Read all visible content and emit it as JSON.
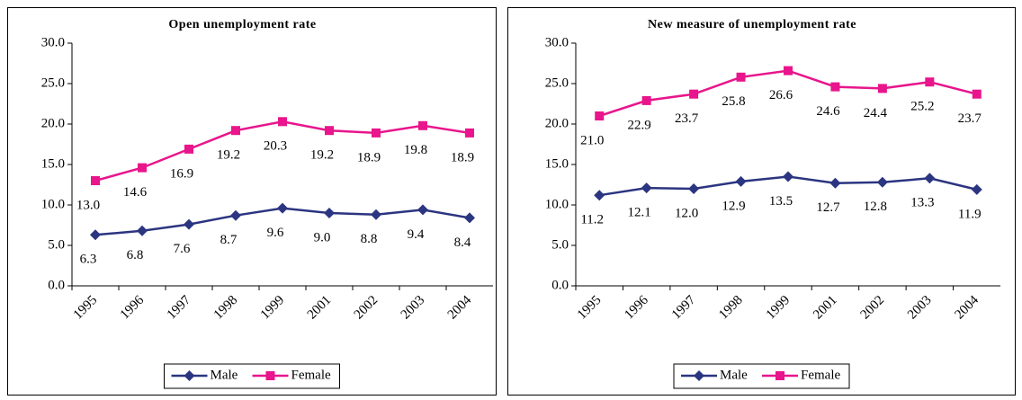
{
  "chart_data": [
    {
      "type": "line",
      "title": "Open unemployment rate",
      "categories": [
        "1995",
        "1996",
        "1997",
        "1998",
        "1999",
        "2001",
        "2002",
        "2003",
        "2004"
      ],
      "series": [
        {
          "name": "Male",
          "color": "#2b3580",
          "marker": "diamond",
          "values": [
            6.3,
            6.8,
            7.6,
            8.7,
            9.6,
            9.0,
            8.8,
            9.4,
            8.4
          ],
          "value_labels": [
            "6.3",
            "6.8",
            "7.6",
            "8.7",
            "9.6",
            "9.0",
            "8.8",
            "9.4",
            "8.4"
          ]
        },
        {
          "name": "Female",
          "color": "#e8158c",
          "marker": "square",
          "values": [
            13.0,
            14.6,
            16.9,
            19.2,
            20.3,
            19.2,
            18.9,
            19.8,
            18.9
          ],
          "value_labels": [
            "13.0",
            "14.6",
            "16.9",
            "19.2",
            "20.3",
            "19.2",
            "18.9",
            "19.8",
            "18.9"
          ]
        }
      ],
      "ylim": [
        0,
        30
      ],
      "yticks": [
        {
          "value": 0,
          "label": "0.0"
        },
        {
          "value": 5,
          "label": "5.0"
        },
        {
          "value": 10,
          "label": "10.0"
        },
        {
          "value": 15,
          "label": "15.0"
        },
        {
          "value": 20,
          "label": "20.0"
        },
        {
          "value": 25,
          "label": "25.0"
        },
        {
          "value": 30,
          "label": "30.0"
        }
      ],
      "legend": "bottom"
    },
    {
      "type": "line",
      "title": "New measure of unemployment rate",
      "categories": [
        "1995",
        "1996",
        "1997",
        "1998",
        "1999",
        "2001",
        "2002",
        "2003",
        "2004"
      ],
      "series": [
        {
          "name": "Male",
          "color": "#2b3580",
          "marker": "diamond",
          "values": [
            11.2,
            12.1,
            12.0,
            12.9,
            13.5,
            12.7,
            12.8,
            13.3,
            11.9
          ],
          "value_labels": [
            "11.2",
            "12.1",
            "12.0",
            "12.9",
            "13.5",
            "12.7",
            "12.8",
            "13.3",
            "11.9"
          ]
        },
        {
          "name": "Female",
          "color": "#e8158c",
          "marker": "square",
          "values": [
            21.0,
            22.9,
            23.7,
            25.8,
            26.6,
            24.6,
            24.4,
            25.2,
            23.7
          ],
          "value_labels": [
            "21.0",
            "22.9",
            "23.7",
            "25.8",
            "26.6",
            "24.6",
            "24.4",
            "25.2",
            "23.7"
          ]
        }
      ],
      "ylim": [
        0,
        30
      ],
      "yticks": [
        {
          "value": 0,
          "label": "0.0"
        },
        {
          "value": 5,
          "label": "5.0"
        },
        {
          "value": 10,
          "label": "10.0"
        },
        {
          "value": 15,
          "label": "15.0"
        },
        {
          "value": 20,
          "label": "20.0"
        },
        {
          "value": 25,
          "label": "25.0"
        },
        {
          "value": 30,
          "label": "30.0"
        }
      ],
      "legend": "bottom"
    }
  ]
}
